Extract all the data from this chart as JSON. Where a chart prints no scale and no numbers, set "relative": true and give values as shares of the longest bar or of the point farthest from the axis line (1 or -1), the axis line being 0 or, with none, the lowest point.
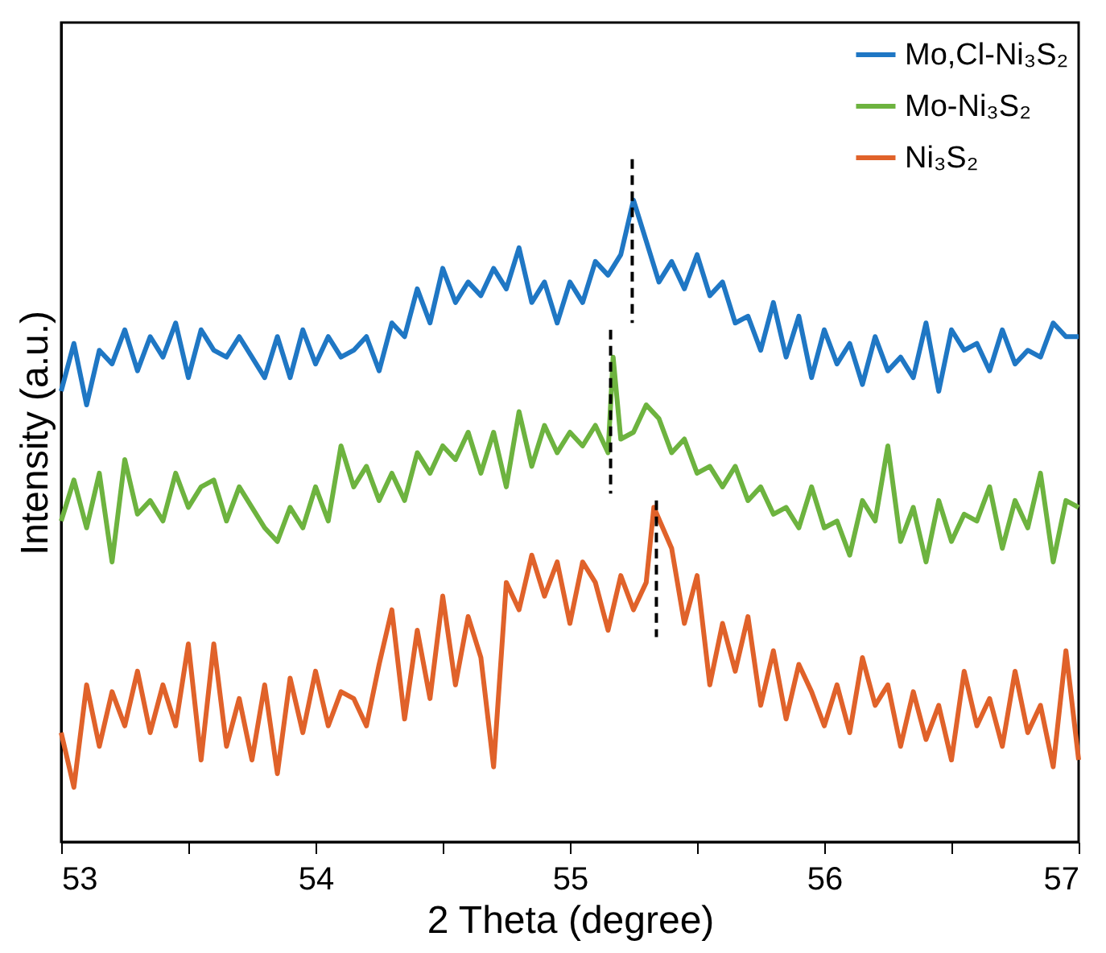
{
  "chart_data": {
    "type": "line",
    "relative": true,
    "xlabel": "2 Theta (degree)",
    "ylabel": "Intensity (a.u.)",
    "xlim": [
      53,
      57
    ],
    "xticks": [
      53,
      {
        "value": 53.5,
        "label": null
      },
      54,
      {
        "value": 54.5,
        "label": null
      },
      55,
      {
        "value": 55.5,
        "label": null
      },
      56,
      {
        "value": 56.5,
        "label": null
      },
      57
    ],
    "legend": "top right",
    "grid": false,
    "marker": "none",
    "series": [
      {
        "name": "Mo,Cl-Ni₃S₂",
        "color": "#1f77c4",
        "x": [
          53.0,
          53.05,
          53.1,
          53.15,
          53.2,
          53.25,
          53.3,
          53.35,
          53.4,
          53.45,
          53.5,
          53.55,
          53.6,
          53.65,
          53.7,
          53.75,
          53.8,
          53.85,
          53.9,
          53.95,
          54.0,
          54.05,
          54.1,
          54.15,
          54.2,
          54.25,
          54.3,
          54.35,
          54.4,
          54.45,
          54.5,
          54.55,
          54.6,
          54.65,
          54.7,
          54.75,
          54.8,
          54.85,
          54.9,
          54.95,
          55.0,
          55.05,
          55.1,
          55.15,
          55.2,
          55.25,
          55.3,
          55.35,
          55.4,
          55.45,
          55.5,
          55.55,
          55.6,
          55.65,
          55.7,
          55.75,
          55.8,
          55.85,
          55.9,
          55.95,
          56.0,
          56.05,
          56.1,
          56.15,
          56.2,
          56.25,
          56.3,
          56.35,
          56.4,
          56.45,
          56.5,
          56.55,
          56.6,
          56.65,
          56.7,
          56.75,
          56.8,
          56.85,
          56.9,
          56.95,
          57.0
        ],
        "values": [
          0.66,
          0.73,
          0.64,
          0.72,
          0.7,
          0.75,
          0.69,
          0.74,
          0.71,
          0.76,
          0.68,
          0.75,
          0.72,
          0.71,
          0.74,
          0.71,
          0.68,
          0.74,
          0.68,
          0.75,
          0.7,
          0.74,
          0.71,
          0.72,
          0.74,
          0.69,
          0.76,
          0.74,
          0.81,
          0.76,
          0.84,
          0.79,
          0.82,
          0.8,
          0.84,
          0.81,
          0.87,
          0.79,
          0.82,
          0.76,
          0.82,
          0.79,
          0.85,
          0.83,
          0.86,
          0.94,
          0.88,
          0.82,
          0.85,
          0.81,
          0.86,
          0.8,
          0.82,
          0.76,
          0.77,
          0.72,
          0.79,
          0.71,
          0.77,
          0.68,
          0.75,
          0.7,
          0.73,
          0.67,
          0.74,
          0.69,
          0.71,
          0.68,
          0.76,
          0.66,
          0.75,
          0.72,
          0.73,
          0.69,
          0.75,
          0.7,
          0.72,
          0.71,
          0.76,
          0.74,
          0.74
        ]
      },
      {
        "name": "Mo-Ni₃S₂",
        "color": "#6db33f",
        "x": [
          53.0,
          53.05,
          53.1,
          53.15,
          53.2,
          53.25,
          53.3,
          53.35,
          53.4,
          53.45,
          53.5,
          53.55,
          53.6,
          53.65,
          53.7,
          53.75,
          53.8,
          53.85,
          53.9,
          53.95,
          54.0,
          54.05,
          54.1,
          54.15,
          54.2,
          54.25,
          54.3,
          54.35,
          54.4,
          54.45,
          54.5,
          54.55,
          54.6,
          54.65,
          54.7,
          54.75,
          54.8,
          54.85,
          54.9,
          54.95,
          55.0,
          55.05,
          55.1,
          55.15,
          55.17,
          55.2,
          55.25,
          55.3,
          55.35,
          55.4,
          55.45,
          55.5,
          55.55,
          55.6,
          55.65,
          55.7,
          55.75,
          55.8,
          55.85,
          55.9,
          55.95,
          56.0,
          56.05,
          56.1,
          56.15,
          56.2,
          56.25,
          56.3,
          56.35,
          56.4,
          56.45,
          56.5,
          56.55,
          56.6,
          56.65,
          56.7,
          56.75,
          56.8,
          56.85,
          56.9,
          56.95,
          57.0
        ],
        "values": [
          0.47,
          0.53,
          0.46,
          0.54,
          0.41,
          0.56,
          0.48,
          0.5,
          0.47,
          0.54,
          0.49,
          0.52,
          0.53,
          0.47,
          0.52,
          0.49,
          0.46,
          0.44,
          0.49,
          0.46,
          0.52,
          0.47,
          0.58,
          0.52,
          0.55,
          0.5,
          0.54,
          0.5,
          0.57,
          0.54,
          0.58,
          0.56,
          0.6,
          0.54,
          0.6,
          0.52,
          0.63,
          0.55,
          0.61,
          0.57,
          0.6,
          0.58,
          0.61,
          0.57,
          0.71,
          0.59,
          0.6,
          0.64,
          0.62,
          0.57,
          0.59,
          0.54,
          0.55,
          0.52,
          0.55,
          0.5,
          0.52,
          0.48,
          0.49,
          0.46,
          0.52,
          0.46,
          0.47,
          0.42,
          0.5,
          0.47,
          0.58,
          0.44,
          0.49,
          0.41,
          0.5,
          0.44,
          0.48,
          0.47,
          0.52,
          0.43,
          0.5,
          0.46,
          0.54,
          0.41,
          0.5,
          0.49
        ]
      },
      {
        "name": "Ni₃S₂",
        "color": "#e0622a",
        "x": [
          53.0,
          53.05,
          53.1,
          53.15,
          53.2,
          53.25,
          53.3,
          53.35,
          53.4,
          53.45,
          53.5,
          53.55,
          53.6,
          53.65,
          53.7,
          53.75,
          53.8,
          53.85,
          53.9,
          53.95,
          54.0,
          54.05,
          54.1,
          54.15,
          54.2,
          54.25,
          54.3,
          54.35,
          54.4,
          54.45,
          54.5,
          54.55,
          54.6,
          54.65,
          54.7,
          54.75,
          54.8,
          54.85,
          54.9,
          54.95,
          55.0,
          55.05,
          55.1,
          55.15,
          55.2,
          55.25,
          55.3,
          55.33,
          55.4,
          55.45,
          55.5,
          55.55,
          55.6,
          55.65,
          55.7,
          55.75,
          55.8,
          55.85,
          55.9,
          55.95,
          56.0,
          56.05,
          56.1,
          56.15,
          56.2,
          56.25,
          56.3,
          56.35,
          56.4,
          56.45,
          56.5,
          56.55,
          56.6,
          56.65,
          56.7,
          56.75,
          56.8,
          56.85,
          56.9,
          56.95,
          57.0
        ],
        "values": [
          0.16,
          0.08,
          0.23,
          0.14,
          0.22,
          0.17,
          0.25,
          0.16,
          0.23,
          0.17,
          0.29,
          0.12,
          0.29,
          0.14,
          0.21,
          0.12,
          0.23,
          0.1,
          0.24,
          0.16,
          0.25,
          0.17,
          0.22,
          0.21,
          0.17,
          0.26,
          0.34,
          0.18,
          0.31,
          0.21,
          0.36,
          0.23,
          0.33,
          0.27,
          0.11,
          0.38,
          0.34,
          0.42,
          0.36,
          0.41,
          0.32,
          0.41,
          0.38,
          0.31,
          0.39,
          0.34,
          0.38,
          0.49,
          0.43,
          0.32,
          0.39,
          0.23,
          0.32,
          0.25,
          0.33,
          0.2,
          0.28,
          0.18,
          0.26,
          0.22,
          0.17,
          0.23,
          0.16,
          0.27,
          0.2,
          0.23,
          0.14,
          0.22,
          0.15,
          0.2,
          0.12,
          0.25,
          0.17,
          0.21,
          0.14,
          0.25,
          0.16,
          0.2,
          0.11,
          0.28,
          0.12
        ]
      },
      {
        "type": "line",
        "line_style": "dashed",
        "color": "#000000",
        "x": [
          55.245,
          55.245
        ],
        "values": [
          1.0,
          0.76
        ]
      },
      {
        "type": "line",
        "line_style": "dashed",
        "color": "#000000",
        "x": [
          55.16,
          55.16
        ],
        "values": [
          0.75,
          0.51
        ]
      },
      {
        "type": "line",
        "line_style": "dashed",
        "color": "#000000",
        "x": [
          55.34,
          55.34
        ],
        "values": [
          0.5,
          0.3
        ]
      }
    ]
  }
}
